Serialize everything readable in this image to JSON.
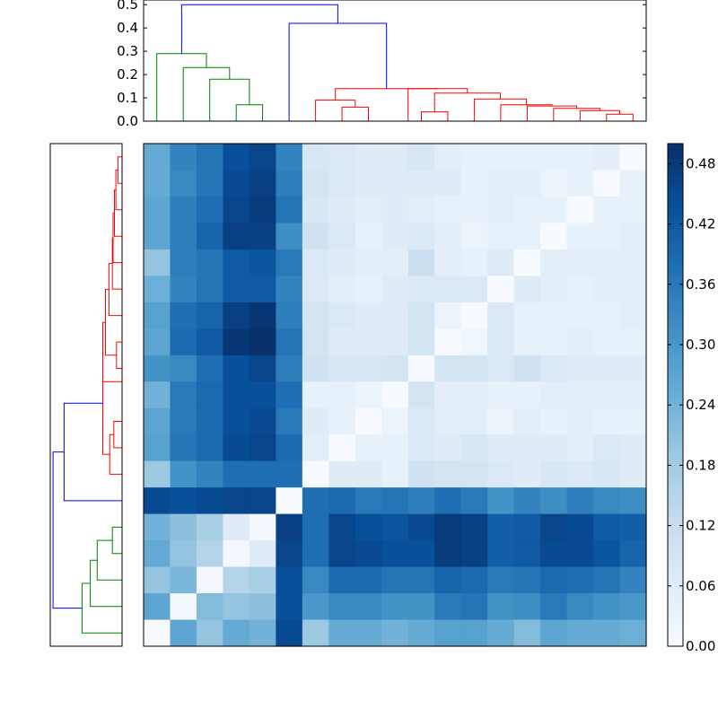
{
  "chart_data": {
    "type": "heatmap",
    "title": "",
    "colormap": "Blues",
    "colorbar": {
      "range": [
        0.0,
        0.5
      ],
      "ticks": [
        0.0,
        0.06,
        0.12,
        0.18,
        0.24,
        0.3,
        0.36,
        0.42,
        0.48
      ],
      "tick_labels": [
        "0.00",
        "0.06",
        "0.12",
        "0.18",
        "0.24",
        "0.30",
        "0.36",
        "0.42",
        "0.48"
      ]
    },
    "top_dendrogram": {
      "orientation": "top",
      "ylim": [
        0.0,
        0.52
      ],
      "yticks": [
        0.0,
        0.1,
        0.2,
        0.3,
        0.4,
        0.5
      ],
      "ytick_labels": [
        "0.0",
        "0.1",
        "0.2",
        "0.3",
        "0.4",
        "0.5"
      ],
      "colors": {
        "green": "#008000",
        "red": "#ff0000",
        "blue": "#0000ff"
      },
      "links": [
        {
          "x": [
            3.5,
            3.5,
            4.5,
            4.5
          ],
          "y": [
            0.0,
            0.07,
            0.07,
            0.0
          ],
          "color": "green"
        },
        {
          "x": [
            2.5,
            2.5,
            4.0,
            4.0
          ],
          "y": [
            0.0,
            0.18,
            0.18,
            0.07
          ],
          "color": "green"
        },
        {
          "x": [
            1.5,
            1.5,
            3.25,
            3.25
          ],
          "y": [
            0.0,
            0.23,
            0.23,
            0.18
          ],
          "color": "green"
        },
        {
          "x": [
            0.5,
            0.5,
            2.375,
            2.375
          ],
          "y": [
            0.0,
            0.29,
            0.29,
            0.23
          ],
          "color": "green"
        },
        {
          "x": [
            7.5,
            7.5,
            8.5,
            8.5
          ],
          "y": [
            0.0,
            0.06,
            0.06,
            0.0
          ],
          "color": "red"
        },
        {
          "x": [
            6.5,
            6.5,
            8.0,
            8.0
          ],
          "y": [
            0.0,
            0.09,
            0.09,
            0.06
          ],
          "color": "red"
        },
        {
          "x": [
            10.5,
            10.5,
            11.5,
            11.5
          ],
          "y": [
            0.0,
            0.04,
            0.04,
            0.0
          ],
          "color": "red"
        },
        {
          "x": [
            17.5,
            17.5,
            18.5,
            18.5
          ],
          "y": [
            0.0,
            0.03,
            0.03,
            0.0
          ],
          "color": "red"
        },
        {
          "x": [
            16.5,
            16.5,
            18.0,
            18.0
          ],
          "y": [
            0.0,
            0.045,
            0.045,
            0.03
          ],
          "color": "red"
        },
        {
          "x": [
            15.5,
            15.5,
            17.25,
            17.25
          ],
          "y": [
            0.0,
            0.055,
            0.055,
            0.045
          ],
          "color": "red"
        },
        {
          "x": [
            14.5,
            14.5,
            16.375,
            16.375
          ],
          "y": [
            0.0,
            0.065,
            0.065,
            0.055
          ],
          "color": "red"
        },
        {
          "x": [
            13.5,
            13.5,
            15.4375,
            15.4375
          ],
          "y": [
            0.0,
            0.07,
            0.07,
            0.065
          ],
          "color": "red"
        },
        {
          "x": [
            12.5,
            12.5,
            14.46875,
            14.46875
          ],
          "y": [
            0.0,
            0.095,
            0.095,
            0.07
          ],
          "color": "red"
        },
        {
          "x": [
            11.0,
            11.0,
            13.484375,
            13.484375
          ],
          "y": [
            0.04,
            0.12,
            0.12,
            0.095
          ],
          "color": "red"
        },
        {
          "x": [
            10.0,
            10.0,
            12.2421875,
            12.2421875
          ],
          "y": [
            0.0,
            0.14,
            0.14,
            0.12
          ],
          "color": "red"
        },
        {
          "x": [
            7.25,
            7.25,
            11.12109375,
            11.12109375
          ],
          "y": [
            0.09,
            0.14,
            0.14,
            0.14
          ],
          "color": "red"
        },
        {
          "x": [
            5.5,
            5.5,
            9.185546875,
            9.185546875
          ],
          "y": [
            0.0,
            0.42,
            0.42,
            0.14
          ],
          "color": "blue"
        },
        {
          "x": [
            1.4375,
            1.4375,
            7.3427734375,
            7.3427734375
          ],
          "y": [
            0.29,
            0.5,
            0.5,
            0.42
          ],
          "color": "blue"
        }
      ]
    },
    "left_dendrogram": {
      "orientation": "left",
      "colors": {
        "green": "#008000",
        "red": "#ff0000",
        "blue": "#0000ff"
      },
      "links": [
        {
          "x": [
            3.5,
            3.5,
            4.5,
            4.5
          ],
          "y": [
            0.0,
            0.07,
            0.07,
            0.0
          ],
          "color": "green"
        },
        {
          "x": [
            2.5,
            2.5,
            4.0,
            4.0
          ],
          "y": [
            0.0,
            0.18,
            0.18,
            0.07
          ],
          "color": "green"
        },
        {
          "x": [
            1.5,
            1.5,
            3.25,
            3.25
          ],
          "y": [
            0.0,
            0.23,
            0.23,
            0.18
          ],
          "color": "green"
        },
        {
          "x": [
            0.5,
            0.5,
            2.375,
            2.375
          ],
          "y": [
            0.0,
            0.29,
            0.29,
            0.23
          ],
          "color": "green"
        },
        {
          "x": [
            7.5,
            7.5,
            8.5,
            8.5
          ],
          "y": [
            0.0,
            0.06,
            0.06,
            0.0
          ],
          "color": "red"
        },
        {
          "x": [
            6.5,
            6.5,
            8.0,
            8.0
          ],
          "y": [
            0.0,
            0.09,
            0.09,
            0.06
          ],
          "color": "red"
        },
        {
          "x": [
            10.5,
            10.5,
            11.5,
            11.5
          ],
          "y": [
            0.0,
            0.04,
            0.04,
            0.0
          ],
          "color": "red"
        },
        {
          "x": [
            17.5,
            17.5,
            18.5,
            18.5
          ],
          "y": [
            0.0,
            0.03,
            0.03,
            0.0
          ],
          "color": "red"
        },
        {
          "x": [
            16.5,
            16.5,
            18.0,
            18.0
          ],
          "y": [
            0.0,
            0.045,
            0.045,
            0.03
          ],
          "color": "red"
        },
        {
          "x": [
            15.5,
            15.5,
            17.25,
            17.25
          ],
          "y": [
            0.0,
            0.055,
            0.055,
            0.045
          ],
          "color": "red"
        },
        {
          "x": [
            14.5,
            14.5,
            16.375,
            16.375
          ],
          "y": [
            0.0,
            0.065,
            0.065,
            0.055
          ],
          "color": "red"
        },
        {
          "x": [
            13.5,
            13.5,
            15.4375,
            15.4375
          ],
          "y": [
            0.0,
            0.07,
            0.07,
            0.065
          ],
          "color": "red"
        },
        {
          "x": [
            12.5,
            12.5,
            14.46875,
            14.46875
          ],
          "y": [
            0.0,
            0.095,
            0.095,
            0.07
          ],
          "color": "red"
        },
        {
          "x": [
            11.0,
            11.0,
            13.484375,
            13.484375
          ],
          "y": [
            0.04,
            0.12,
            0.12,
            0.095
          ],
          "color": "red"
        },
        {
          "x": [
            10.0,
            10.0,
            12.2421875,
            12.2421875
          ],
          "y": [
            0.0,
            0.14,
            0.14,
            0.12
          ],
          "color": "red"
        },
        {
          "x": [
            7.25,
            7.25,
            11.12109375,
            11.12109375
          ],
          "y": [
            0.09,
            0.14,
            0.14,
            0.14
          ],
          "color": "red"
        },
        {
          "x": [
            5.5,
            5.5,
            9.185546875,
            9.185546875
          ],
          "y": [
            0.0,
            0.42,
            0.42,
            0.14
          ],
          "color": "blue"
        },
        {
          "x": [
            1.4375,
            1.4375,
            7.3427734375,
            7.3427734375
          ],
          "y": [
            0.29,
            0.5,
            0.5,
            0.42
          ],
          "color": "blue"
        }
      ]
    },
    "matrix_rows_top_to_bottom": [
      [
        0.26,
        0.34,
        0.37,
        0.44,
        0.46,
        0.34,
        0.08,
        0.07,
        0.06,
        0.06,
        0.08,
        0.05,
        0.04,
        0.04,
        0.04,
        0.04,
        0.04,
        0.05,
        0.0
      ],
      [
        0.26,
        0.33,
        0.37,
        0.45,
        0.47,
        0.35,
        0.09,
        0.07,
        0.06,
        0.06,
        0.06,
        0.06,
        0.04,
        0.05,
        0.05,
        0.03,
        0.04,
        0.0,
        0.04
      ],
      [
        0.27,
        0.35,
        0.38,
        0.46,
        0.48,
        0.37,
        0.08,
        0.06,
        0.05,
        0.06,
        0.05,
        0.04,
        0.04,
        0.05,
        0.04,
        0.04,
        0.0,
        0.04,
        0.04
      ],
      [
        0.27,
        0.35,
        0.4,
        0.47,
        0.47,
        0.32,
        0.1,
        0.07,
        0.04,
        0.06,
        0.07,
        0.05,
        0.03,
        0.04,
        0.04,
        0.0,
        0.04,
        0.04,
        0.05
      ],
      [
        0.2,
        0.35,
        0.37,
        0.42,
        0.43,
        0.36,
        0.07,
        0.06,
        0.05,
        0.05,
        0.11,
        0.05,
        0.04,
        0.06,
        0.0,
        0.05,
        0.05,
        0.05,
        0.05
      ],
      [
        0.25,
        0.34,
        0.37,
        0.42,
        0.42,
        0.34,
        0.07,
        0.05,
        0.04,
        0.06,
        0.07,
        0.07,
        0.07,
        0.0,
        0.06,
        0.05,
        0.04,
        0.05,
        0.05
      ],
      [
        0.28,
        0.38,
        0.4,
        0.47,
        0.49,
        0.35,
        0.09,
        0.07,
        0.06,
        0.06,
        0.09,
        0.03,
        0.0,
        0.07,
        0.04,
        0.04,
        0.04,
        0.04,
        0.05
      ],
      [
        0.27,
        0.39,
        0.42,
        0.49,
        0.5,
        0.37,
        0.09,
        0.06,
        0.06,
        0.06,
        0.09,
        0.0,
        0.02,
        0.07,
        0.04,
        0.04,
        0.05,
        0.04,
        0.04
      ],
      [
        0.31,
        0.33,
        0.38,
        0.44,
        0.46,
        0.35,
        0.1,
        0.08,
        0.08,
        0.09,
        0.0,
        0.09,
        0.09,
        0.07,
        0.1,
        0.07,
        0.06,
        0.06,
        0.06
      ],
      [
        0.24,
        0.36,
        0.39,
        0.44,
        0.44,
        0.38,
        0.04,
        0.04,
        0.03,
        0.0,
        0.09,
        0.05,
        0.05,
        0.04,
        0.04,
        0.05,
        0.05,
        0.05,
        0.05
      ],
      [
        0.27,
        0.36,
        0.39,
        0.44,
        0.45,
        0.36,
        0.06,
        0.04,
        0.0,
        0.03,
        0.07,
        0.05,
        0.05,
        0.03,
        0.05,
        0.04,
        0.05,
        0.04,
        0.04
      ],
      [
        0.28,
        0.37,
        0.39,
        0.45,
        0.46,
        0.39,
        0.05,
        0.0,
        0.04,
        0.04,
        0.07,
        0.06,
        0.08,
        0.06,
        0.06,
        0.06,
        0.05,
        0.07,
        0.06
      ],
      [
        0.19,
        0.31,
        0.34,
        0.38,
        0.38,
        0.38,
        0.0,
        0.06,
        0.06,
        0.04,
        0.1,
        0.09,
        0.09,
        0.07,
        0.06,
        0.08,
        0.07,
        0.08,
        0.06
      ],
      [
        0.45,
        0.44,
        0.45,
        0.46,
        0.46,
        0.0,
        0.38,
        0.39,
        0.36,
        0.37,
        0.35,
        0.38,
        0.36,
        0.31,
        0.34,
        0.32,
        0.35,
        0.33,
        0.32
      ],
      [
        0.24,
        0.21,
        0.17,
        0.06,
        0.01,
        0.47,
        0.38,
        0.46,
        0.44,
        0.43,
        0.45,
        0.48,
        0.47,
        0.41,
        0.42,
        0.46,
        0.45,
        0.42,
        0.41
      ],
      [
        0.26,
        0.2,
        0.15,
        0.01,
        0.06,
        0.46,
        0.38,
        0.46,
        0.45,
        0.44,
        0.44,
        0.48,
        0.47,
        0.41,
        0.42,
        0.45,
        0.45,
        0.43,
        0.4
      ],
      [
        0.2,
        0.23,
        0.01,
        0.15,
        0.17,
        0.44,
        0.33,
        0.39,
        0.39,
        0.37,
        0.37,
        0.4,
        0.39,
        0.36,
        0.37,
        0.39,
        0.38,
        0.37,
        0.34
      ],
      [
        0.27,
        0.01,
        0.22,
        0.2,
        0.21,
        0.44,
        0.3,
        0.33,
        0.33,
        0.31,
        0.31,
        0.36,
        0.37,
        0.31,
        0.32,
        0.36,
        0.33,
        0.31,
        0.3
      ],
      [
        0.0,
        0.27,
        0.2,
        0.26,
        0.24,
        0.45,
        0.19,
        0.26,
        0.26,
        0.24,
        0.26,
        0.28,
        0.28,
        0.26,
        0.22,
        0.27,
        0.26,
        0.26,
        0.25
      ]
    ]
  }
}
